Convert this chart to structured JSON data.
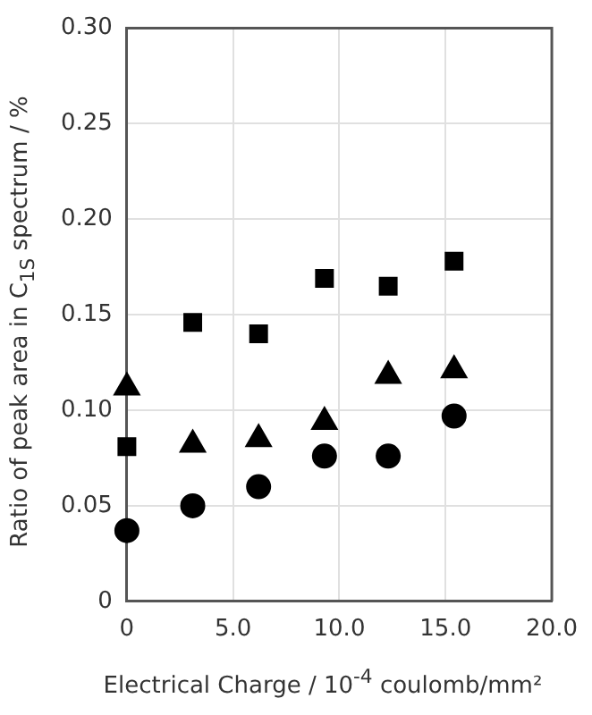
{
  "chart_data": {
    "type": "scatter",
    "xlabel": "Electrical Charge / 10$^{-4}$ coulomb/mm²",
    "ylabel": "Ratio of peak area in C$_{1S}$ spectrum / %",
    "x": [
      0,
      3.1,
      6.2,
      9.3,
      12.3,
      15.4
    ],
    "series": [
      {
        "color": "#000000",
        "marker": "square",
        "values": [
          0.081,
          0.146,
          0.14,
          0.169,
          0.165,
          0.178
        ]
      },
      {
        "color": "#000000",
        "marker": "triangle",
        "values": [
          0.112,
          0.082,
          0.085,
          0.094,
          0.118,
          0.121
        ]
      },
      {
        "color": "#000000",
        "marker": "circle",
        "values": [
          0.037,
          0.05,
          0.06,
          0.076,
          0.076,
          0.097
        ]
      }
    ],
    "xlim": [
      0,
      20
    ],
    "xticks": [
      0,
      {
        "value": 5,
        "label": "5.0"
      },
      {
        "value": 10,
        "label": "10.0"
      },
      {
        "value": 15,
        "label": "15.0"
      },
      {
        "value": 20,
        "label": "20.0"
      }
    ],
    "ylim": [
      0,
      0.3
    ],
    "yticks": [
      0,
      0.05,
      {
        "value": 0.1,
        "label": "0.10"
      },
      0.15,
      {
        "value": 0.2,
        "label": "0.20"
      },
      0.25,
      {
        "value": 0.3,
        "label": "0.30"
      }
    ],
    "grid": true,
    "legend": false
  }
}
